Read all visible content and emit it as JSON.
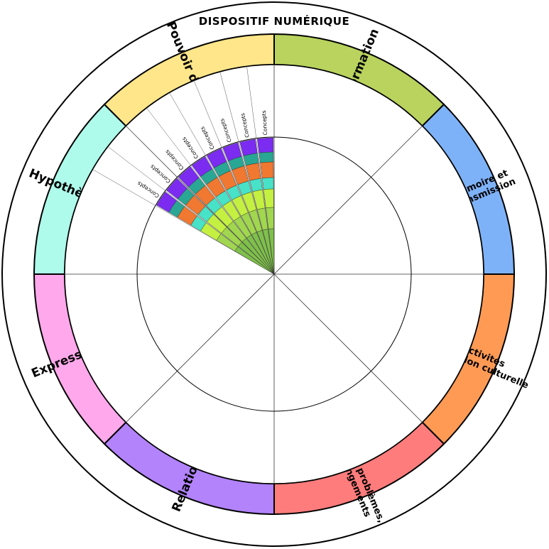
{
  "title": "DISPOSITIF NUMÉRIQUE",
  "segments": [
    {
      "lines": [
        "Information"
      ],
      "color": "#b9d35e"
    },
    {
      "lines": [
        "Mémoire et",
        "transmission"
      ],
      "color": "#7eb2f8"
    },
    {
      "lines": [
        "Activités",
        "médiation culturelle"
      ],
      "color": "#ff9a55"
    },
    {
      "lines": [
        "Défis, problèmes,",
        "changements"
      ],
      "color": "#ff7c7c"
    },
    {
      "lines": [
        "Relations"
      ],
      "color": "#b283fb"
    },
    {
      "lines": [
        "Expression"
      ],
      "color": "#ffa8ec"
    },
    {
      "lines": [
        "Hypothèses"
      ],
      "color": "#aefbeb"
    },
    {
      "lines": [
        "Pouvoir d'agir"
      ],
      "color": "#ffe68a"
    }
  ],
  "concept_label": "Concepts",
  "concept_count": 8,
  "concept_bar_colors": [
    "#7b2cf0",
    "#2aa694",
    "#f07830",
    "#47e2c8",
    "#c4f041",
    "#a1d64f",
    "#7fc04b"
  ],
  "spoke_color": "#333333"
}
